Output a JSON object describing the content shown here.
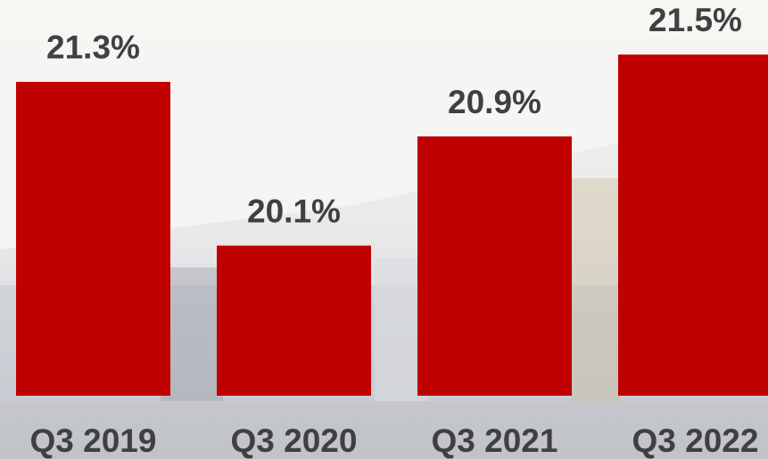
{
  "chart_data": {
    "type": "bar",
    "categories": [
      "Q3 2019",
      "Q3 2020",
      "Q3 2021",
      "Q3 2022"
    ],
    "values": [
      21.3,
      20.1,
      20.9,
      21.5
    ],
    "value_labels": [
      "21.3%",
      "20.1%",
      "20.9%",
      "21.5%"
    ],
    "color": "#c00000",
    "ylim": [
      19,
      21.9
    ]
  }
}
